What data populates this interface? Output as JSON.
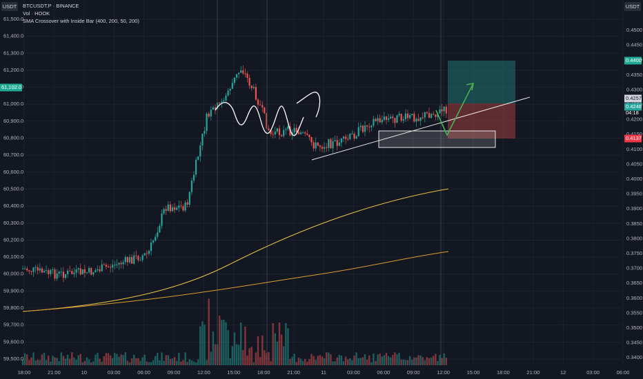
{
  "header": {
    "button_left": "USDT",
    "button_right": "USDT",
    "symbol": "BTCUSDT.P · BINANCE",
    "volume": "Vol · HOOK",
    "indicator": "SMA Crossover with Inside Bar (400, 200, 50, 200)",
    "price_badge": "61,102.0"
  },
  "left_axis": [
    "61,500.0",
    "61,400.0",
    "61,300.0",
    "61,200.0",
    "61,100.0",
    "61,000.0",
    "60,900.0",
    "60,800.0",
    "60,700.0",
    "60,600.0",
    "60,500.0",
    "60,400.0",
    "60,300.0",
    "60,200.0",
    "60,100.0",
    "60,000.0",
    "59,900.0",
    "59,800.0",
    "59,700.0",
    "59,600.0",
    "59,500.0"
  ],
  "right_axis": [
    "0.4500",
    "0.4450",
    "0.4400",
    "0.4350",
    "0.4300",
    "0.4250",
    "0.4200",
    "0.4150",
    "0.4100",
    "0.4050",
    "0.4000",
    "0.3950",
    "0.3900",
    "0.3850",
    "0.3800",
    "0.3750",
    "0.3700",
    "0.3650",
    "0.3600",
    "0.3550",
    "0.3500",
    "0.3450",
    "0.3400"
  ],
  "right_badges": {
    "target": "0.4400",
    "last": "0.4257",
    "current": "0.4248",
    "countdown": "04:18",
    "stop": "0.4137"
  },
  "time_axis": [
    "18:00",
    "21:00",
    "10",
    "03:00",
    "06:00",
    "09:00",
    "12:00",
    "15:00",
    "18:00",
    "21:00",
    "11",
    "03:00",
    "06:00",
    "09:00",
    "12:00",
    "15:00",
    "18:00",
    "21:00",
    "12",
    "03:00",
    "06:00"
  ]
}
